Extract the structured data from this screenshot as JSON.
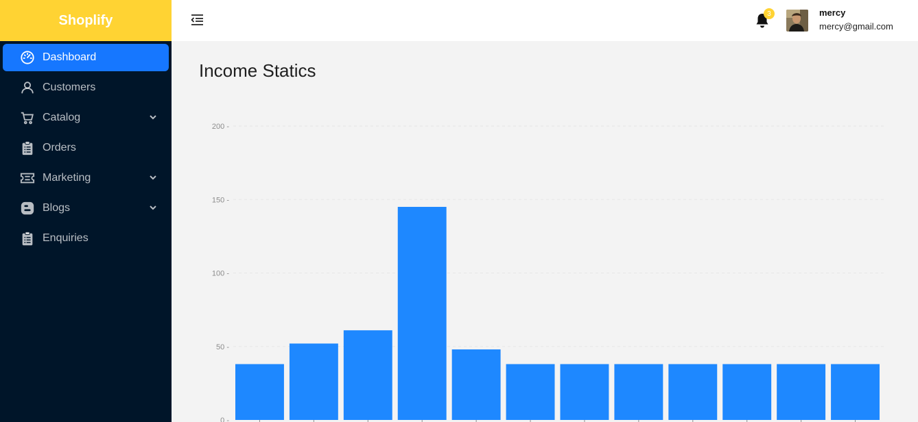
{
  "brand": {
    "name": "Shoplify",
    "color": "#ffd333"
  },
  "sidebar": {
    "items": [
      {
        "label": "Dashboard",
        "icon": "dashboard-icon",
        "active": true
      },
      {
        "label": "Customers",
        "icon": "user-icon"
      },
      {
        "label": "Catalog",
        "icon": "cart-icon",
        "expandable": true
      },
      {
        "label": "Orders",
        "icon": "clipboard-icon"
      },
      {
        "label": "Marketing",
        "icon": "ticket-icon",
        "expandable": true
      },
      {
        "label": "Blogs",
        "icon": "blogger-icon",
        "expandable": true
      },
      {
        "label": "Enquiries",
        "icon": "clipboard-icon"
      }
    ],
    "active_color": "#1677ff"
  },
  "header": {
    "notification_count": "3",
    "user": {
      "name": "mercy",
      "email": "mercy@gmail.com"
    }
  },
  "main": {
    "title": "Income Statics"
  },
  "chart_data": {
    "type": "bar",
    "title": "",
    "xlabel": "",
    "ylabel": "",
    "ylim": [
      0,
      200
    ],
    "yticks": [
      0,
      50,
      100,
      150,
      200
    ],
    "grid": true,
    "bar_color": "#1e88ff",
    "values": [
      38,
      52,
      61,
      145,
      48,
      38,
      38,
      38,
      38,
      38,
      38,
      38
    ]
  }
}
